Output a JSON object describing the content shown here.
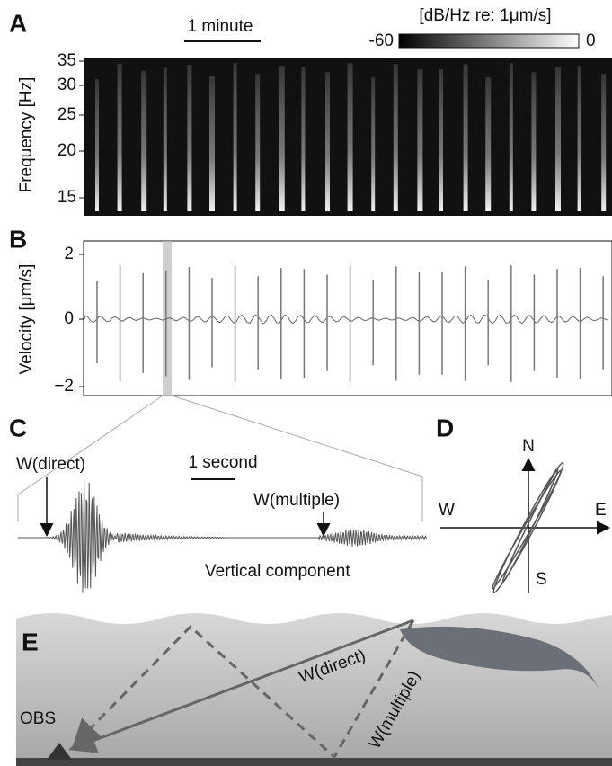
{
  "panel_a": {
    "label": "A",
    "scale_bar": "1 minute",
    "colorbar_title": "[dB/Hz re: 1μm/s]",
    "colorbar_min": "-60",
    "colorbar_max": "0",
    "y_axis_label": "Frequency [Hz]",
    "y_ticks": [
      "35",
      "30",
      "25",
      "20",
      "15"
    ]
  },
  "panel_b": {
    "label": "B",
    "y_axis_label": "Velocity [μm/s]",
    "y_ticks": [
      "2",
      "0",
      "−2"
    ]
  },
  "panel_c": {
    "label": "C",
    "scale_bar": "1 second",
    "annotations": [
      "W(direct)",
      "W(multiple)"
    ],
    "caption": "Vertical component"
  },
  "panel_d": {
    "label": "D",
    "directions": [
      "N",
      "E",
      "S",
      "W"
    ]
  },
  "panel_e": {
    "label": "E",
    "station": "OBS",
    "paths": [
      "W(direct)",
      "W(multiple)"
    ]
  }
}
